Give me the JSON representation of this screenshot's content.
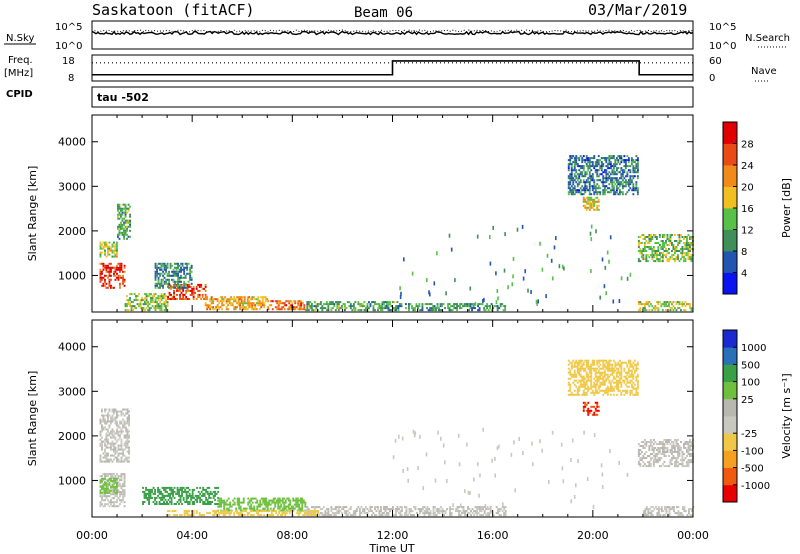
{
  "header": {
    "station": "Saskatoon (fitACF)",
    "beam": "Beam 06",
    "date": "03/Mar/2019"
  },
  "noise_panel": {
    "left_label": "N.Sky",
    "left_ticks": [
      "10^5",
      "10^0"
    ],
    "right_label": "N.Search",
    "right_ticks": [
      "10^5",
      "10^0"
    ]
  },
  "freq_panel": {
    "left_label_1": "Freq.",
    "left_label_2": "[MHz]",
    "left_label_3": "CPID",
    "left_ticks": [
      "18",
      "8"
    ],
    "right_label": "Nave",
    "right_ticks": [
      "60",
      "0"
    ]
  },
  "cpid_text": "tau -502",
  "colors": {
    "power": [
      "#0a14f0",
      "#2255b0",
      "#3f8f5a",
      "#58c048",
      "#f0c020",
      "#f08a18",
      "#e84a18",
      "#e00000"
    ],
    "velocity": [
      "#e80000",
      "#f05a10",
      "#f5a020",
      "#f0c848",
      "#c8c8c0",
      "#b8b8b0",
      "#70c040",
      "#3aa048",
      "#2a70b8",
      "#1a2ad0"
    ]
  },
  "chart_data": [
    {
      "type": "heatmap",
      "name": "power",
      "ylabel": "Slant Range [km]",
      "y_ticks": [
        "1000",
        "2000",
        "3000",
        "4000"
      ],
      "ylim": [
        180,
        4600
      ],
      "colorbar_label": "Power [dB]",
      "colorbar_ticks": [
        "4",
        "8",
        "12",
        "16",
        "20",
        "24",
        "28"
      ],
      "clim": [
        0,
        32
      ],
      "xlim": [
        0,
        24
      ],
      "regions": [
        {
          "t0": 0.3,
          "t1": 1.3,
          "r0": 700,
          "r1": 1250,
          "value": 27
        },
        {
          "t0": 0.3,
          "t1": 1.0,
          "r0": 1400,
          "r1": 1750,
          "value": 16
        },
        {
          "t0": 1.0,
          "t1": 1.5,
          "r0": 1800,
          "r1": 2600,
          "value": 12
        },
        {
          "t0": 1.3,
          "t1": 3.0,
          "r0": 200,
          "r1": 600,
          "value": 14
        },
        {
          "t0": 3.0,
          "t1": 4.5,
          "r0": 450,
          "r1": 800,
          "value": 26
        },
        {
          "t0": 4.5,
          "t1": 7.0,
          "r0": 220,
          "r1": 500,
          "value": 20
        },
        {
          "t0": 7.0,
          "t1": 8.5,
          "r0": 220,
          "r1": 420,
          "value": 24
        },
        {
          "t0": 8.5,
          "t1": 12.2,
          "r0": 200,
          "r1": 420,
          "value": 12
        },
        {
          "t0": 12.2,
          "t1": 16.5,
          "r0": 200,
          "r1": 360,
          "value": 10
        },
        {
          "t0": 2.5,
          "t1": 4.0,
          "r0": 700,
          "r1": 1250,
          "value": 10
        },
        {
          "t0": 19.6,
          "t1": 20.2,
          "r0": 2450,
          "r1": 2750,
          "value": 18
        },
        {
          "t0": 19.0,
          "t1": 21.8,
          "r0": 2800,
          "r1": 3700,
          "value": 8
        },
        {
          "t0": 21.8,
          "t1": 24.0,
          "r0": 1300,
          "r1": 1900,
          "value": 14
        },
        {
          "t0": 21.8,
          "t1": 24.0,
          "r0": 200,
          "r1": 420,
          "value": 16
        }
      ]
    },
    {
      "type": "heatmap",
      "name": "velocity",
      "ylabel": "Slant Range [km]",
      "y_ticks": [
        "1000",
        "2000",
        "3000",
        "4000"
      ],
      "ylim": [
        180,
        4600
      ],
      "colorbar_label": "Velocity [m s⁻¹]",
      "colorbar_ticks": [
        "-1000",
        "-500",
        "-100",
        "-25",
        "25",
        "100",
        "500",
        "1000"
      ],
      "xlim": [
        0,
        24
      ],
      "x_ticks": [
        "00:00",
        "04:00",
        "08:00",
        "12:00",
        "16:00",
        "20:00",
        "00:00"
      ],
      "xlabel": "Time UT",
      "regions": [
        {
          "t0": 0.3,
          "t1": 1.3,
          "r0": 400,
          "r1": 1150,
          "value": 0
        },
        {
          "t0": 0.3,
          "t1": 1.0,
          "r0": 700,
          "r1": 1050,
          "value": 60
        },
        {
          "t0": 0.3,
          "t1": 1.5,
          "r0": 1400,
          "r1": 2600,
          "value": 0
        },
        {
          "t0": 2.0,
          "t1": 5.0,
          "r0": 450,
          "r1": 850,
          "value": 200
        },
        {
          "t0": 5.0,
          "t1": 8.5,
          "r0": 300,
          "r1": 600,
          "value": 60
        },
        {
          "t0": 8.5,
          "t1": 16.5,
          "r0": 200,
          "r1": 420,
          "value": 0
        },
        {
          "t0": 3.0,
          "t1": 9.0,
          "r0": 200,
          "r1": 330,
          "value": -60
        },
        {
          "t0": 19.6,
          "t1": 20.2,
          "r0": 2450,
          "r1": 2750,
          "value": -1000
        },
        {
          "t0": 19.0,
          "t1": 21.8,
          "r0": 2900,
          "r1": 3700,
          "value": -60
        },
        {
          "t0": 21.8,
          "t1": 24.0,
          "r0": 1300,
          "r1": 1900,
          "value": 0
        },
        {
          "t0": 22.0,
          "t1": 24.0,
          "r0": 200,
          "r1": 420,
          "value": 0
        }
      ]
    }
  ]
}
